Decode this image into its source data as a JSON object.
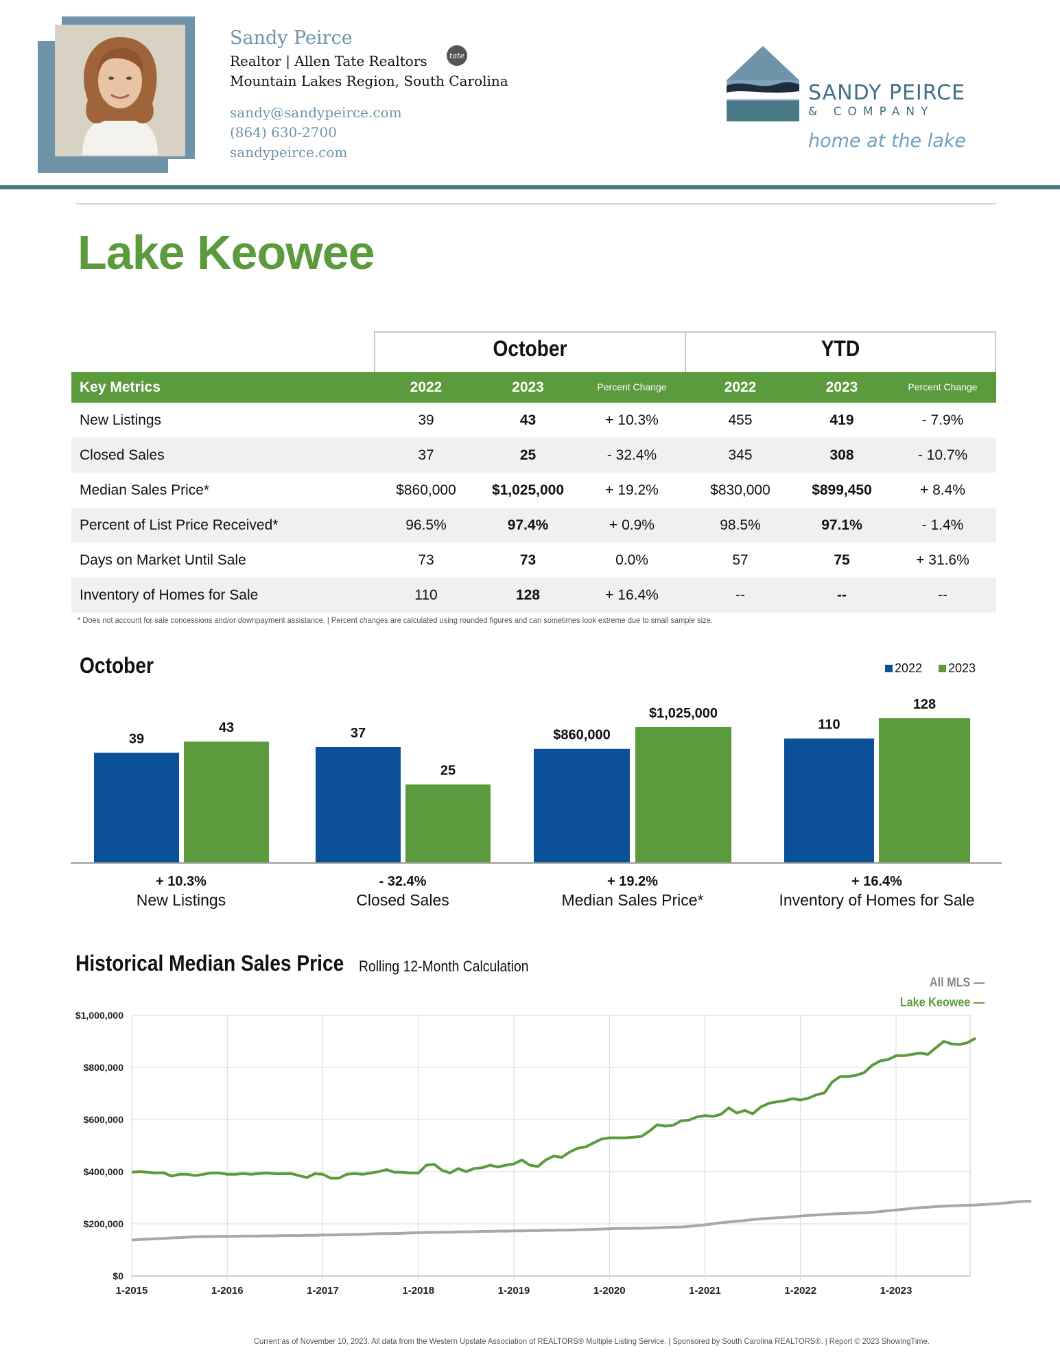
{
  "agent": {
    "name": "Sandy Peirce",
    "role": "Realtor  | Allen Tate Realtors",
    "badge": "tate",
    "region": "Mountain Lakes Region, South Carolina",
    "email": "sandy@sandypeirce.com",
    "phone": "(864) 630-2700",
    "website": "sandypeirce.com"
  },
  "logo": {
    "name": "SANDY PEIRCE",
    "sub": "& COMPANY",
    "tagline": "home at the lake"
  },
  "page_title": "Lake Keowee",
  "table": {
    "group_october": "October",
    "group_ytd": "YTD",
    "key_metrics_label": "Key Metrics",
    "col_2022": "2022",
    "col_2023": "2023",
    "col_change": "Percent Change",
    "rows": [
      {
        "label": "New Listings",
        "oct_2022": "39",
        "oct_2023": "43",
        "oct_change": "+ 10.3%",
        "ytd_2022": "455",
        "ytd_2023": "419",
        "ytd_change": "- 7.9%"
      },
      {
        "label": "Closed Sales",
        "oct_2022": "37",
        "oct_2023": "25",
        "oct_change": "- 32.4%",
        "ytd_2022": "345",
        "ytd_2023": "308",
        "ytd_change": "- 10.7%"
      },
      {
        "label": "Median Sales Price*",
        "oct_2022": "$860,000",
        "oct_2023": "$1,025,000",
        "oct_change": "+ 19.2%",
        "ytd_2022": "$830,000",
        "ytd_2023": "$899,450",
        "ytd_change": "+ 8.4%"
      },
      {
        "label": "Percent of List Price Received*",
        "oct_2022": "96.5%",
        "oct_2023": "97.4%",
        "oct_change": "+ 0.9%",
        "ytd_2022": "98.5%",
        "ytd_2023": "97.1%",
        "ytd_change": "- 1.4%"
      },
      {
        "label": "Days on Market Until Sale",
        "oct_2022": "73",
        "oct_2023": "73",
        "oct_change": "0.0%",
        "ytd_2022": "57",
        "ytd_2023": "75",
        "ytd_change": "+ 31.6%"
      },
      {
        "label": "Inventory of Homes for Sale",
        "oct_2022": "110",
        "oct_2023": "128",
        "oct_change": "+ 16.4%",
        "ytd_2022": "--",
        "ytd_2023": "--",
        "ytd_change": "--"
      }
    ],
    "footnote": "* Does not account for sale concessions and/or downpayment assistance.  |  Percent changes are calculated using rounded figures and can sometimes look extreme due to small sample size."
  },
  "chart_data": [
    {
      "type": "bar",
      "title": "October",
      "colors": {
        "2022": "#0b5098",
        "2023": "#5c9a3e"
      },
      "series": [
        {
          "name": "2022"
        },
        {
          "name": "2023"
        }
      ],
      "groups": [
        {
          "name": "New Listings",
          "change": "+ 10.3%",
          "values": [
            39,
            43
          ],
          "labels": [
            "39",
            "43"
          ]
        },
        {
          "name": "Closed Sales",
          "change": "- 32.4%",
          "values": [
            37,
            25
          ],
          "labels": [
            "37",
            "25"
          ]
        },
        {
          "name": "Median Sales Price*",
          "change": "+ 19.2%",
          "values": [
            860000,
            1025000
          ],
          "labels": [
            "$860,000",
            "$1,025,000"
          ]
        },
        {
          "name": "Inventory of Homes for Sale",
          "change": "+ 16.4%",
          "values": [
            110,
            128
          ],
          "labels": [
            "110",
            "128"
          ]
        }
      ]
    },
    {
      "type": "line",
      "title": "Historical Median Sales Price",
      "subtitle": "Rolling 12-Month Calculation",
      "ylim": [
        0,
        1000000
      ],
      "y_ticks": [
        "$0",
        "$200,000",
        "$400,000",
        "$600,000",
        "$800,000",
        "$1,000,000"
      ],
      "x_ticks": [
        "1-2015",
        "1-2016",
        "1-2017",
        "1-2018",
        "1-2019",
        "1-2020",
        "1-2021",
        "1-2022",
        "1-2023"
      ],
      "grid": true,
      "legend": "top-right",
      "series": [
        {
          "name": "All MLS",
          "color": "#a8a8a8",
          "values": [
            138000,
            140000,
            141000,
            143000,
            144000,
            146000,
            147000,
            149000,
            150000,
            151000,
            151000,
            152000,
            152000,
            152000,
            153000,
            153000,
            153000,
            154000,
            154000,
            155000,
            155000,
            155000,
            156000,
            156000,
            157000,
            157000,
            158000,
            159000,
            159000,
            160000,
            161000,
            162000,
            163000,
            163000,
            164000,
            165000,
            166000,
            167000,
            167000,
            168000,
            168000,
            169000,
            169000,
            170000,
            171000,
            171000,
            172000,
            172000,
            173000,
            173000,
            174000,
            174000,
            175000,
            175000,
            176000,
            176000,
            177000,
            178000,
            179000,
            180000,
            181000,
            182000,
            182000,
            183000,
            183000,
            184000,
            185000,
            186000,
            187000,
            188000,
            190000,
            193000,
            196000,
            200000,
            204000,
            207000,
            210000,
            213000,
            216000,
            219000,
            221000,
            223000,
            225000,
            227000,
            230000,
            232000,
            234000,
            236000,
            238000,
            239000,
            240000,
            241000,
            242000,
            244000,
            247000,
            250000,
            253000,
            256000,
            259000,
            262000,
            264000,
            266000,
            268000,
            269000,
            270000,
            271000,
            272000,
            274000,
            276000,
            278000,
            281000,
            284000,
            286000,
            287000
          ]
        },
        {
          "name": "Lake Keowee",
          "color": "#5c9a3e",
          "values": [
            398000,
            400000,
            398000,
            395000,
            396000,
            383000,
            390000,
            390000,
            385000,
            390000,
            395000,
            395000,
            390000,
            390000,
            393000,
            390000,
            393000,
            395000,
            392000,
            392000,
            393000,
            385000,
            378000,
            392000,
            390000,
            375000,
            375000,
            390000,
            393000,
            390000,
            395000,
            400000,
            408000,
            398000,
            398000,
            395000,
            395000,
            425000,
            428000,
            405000,
            395000,
            412000,
            400000,
            412000,
            415000,
            425000,
            418000,
            425000,
            430000,
            445000,
            425000,
            420000,
            445000,
            460000,
            455000,
            475000,
            490000,
            495000,
            510000,
            525000,
            530000,
            530000,
            530000,
            532000,
            535000,
            555000,
            580000,
            575000,
            578000,
            595000,
            598000,
            610000,
            615000,
            612000,
            620000,
            645000,
            625000,
            635000,
            622000,
            648000,
            662000,
            668000,
            672000,
            680000,
            675000,
            682000,
            695000,
            702000,
            745000,
            765000,
            765000,
            770000,
            780000,
            808000,
            825000,
            830000,
            845000,
            845000,
            850000,
            855000,
            850000,
            875000,
            900000,
            890000,
            888000,
            895000,
            912000
          ]
        }
      ]
    }
  ],
  "footer": "Current as of November 10, 2023. All data from the Western Upstate Association of REALTORS® Multiple Listing Service.  |  Sponsored by South Carolina REALTORS®.  |  Report © 2023 ShowingTime."
}
